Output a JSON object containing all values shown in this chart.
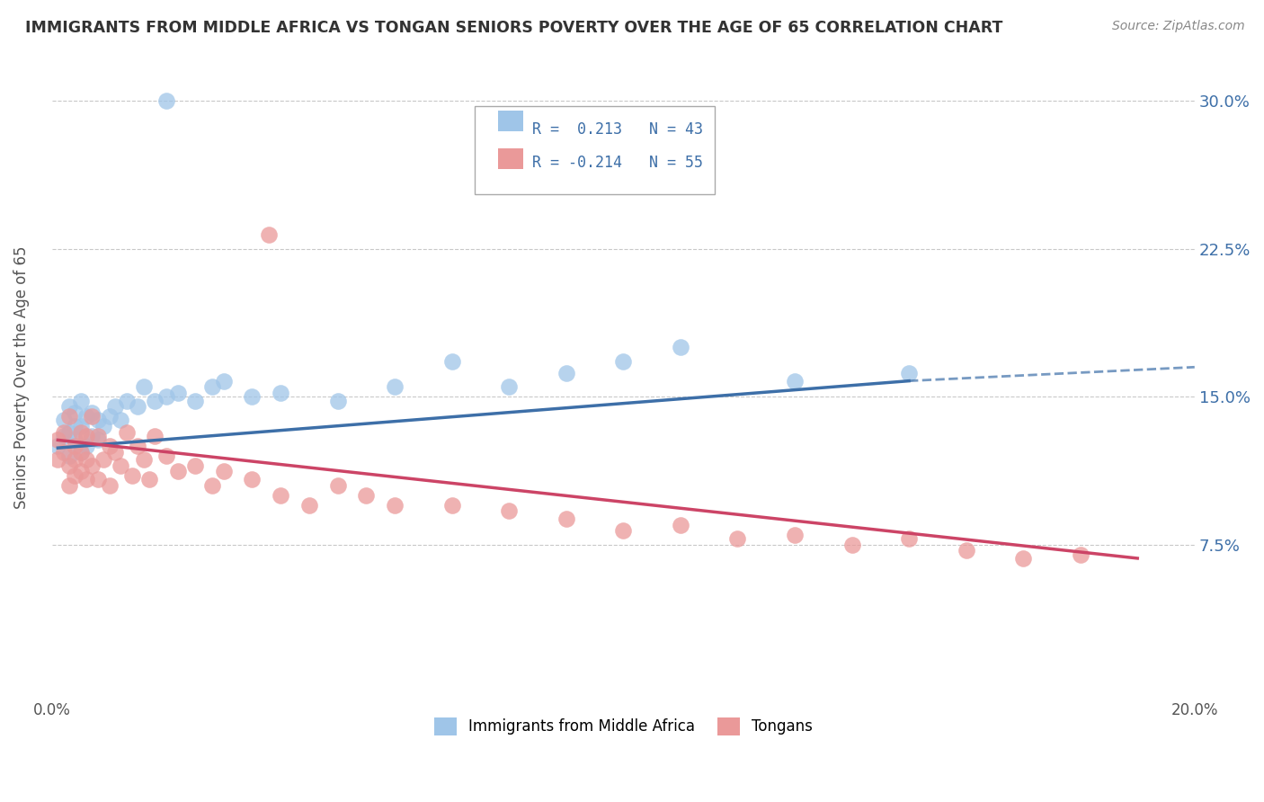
{
  "title": "IMMIGRANTS FROM MIDDLE AFRICA VS TONGAN SENIORS POVERTY OVER THE AGE OF 65 CORRELATION CHART",
  "source": "Source: ZipAtlas.com",
  "ylabel": "Seniors Poverty Over the Age of 65",
  "legend_label_blue": "Immigrants from Middle Africa",
  "legend_label_pink": "Tongans",
  "R_blue": 0.213,
  "N_blue": 43,
  "R_pink": -0.214,
  "N_pink": 55,
  "xlim": [
    0.0,
    0.2
  ],
  "ylim": [
    0.0,
    0.32
  ],
  "xtick_positions": [
    0.0,
    0.05,
    0.1,
    0.15,
    0.2
  ],
  "xtick_labels": [
    "0.0%",
    "",
    "",
    "",
    "20.0%"
  ],
  "ytick_positions": [
    0.075,
    0.15,
    0.225,
    0.3
  ],
  "ytick_labels": [
    "7.5%",
    "15.0%",
    "22.5%",
    "30.0%"
  ],
  "color_blue": "#9fc5e8",
  "color_pink": "#ea9999",
  "line_color_blue": "#3d6fa8",
  "line_color_pink": "#cc4466",
  "background_color": "#ffffff",
  "grid_color": "#bbbbbb",
  "blue_x": [
    0.001,
    0.002,
    0.002,
    0.003,
    0.003,
    0.003,
    0.004,
    0.004,
    0.004,
    0.005,
    0.005,
    0.005,
    0.006,
    0.006,
    0.007,
    0.007,
    0.008,
    0.008,
    0.009,
    0.01,
    0.011,
    0.012,
    0.013,
    0.015,
    0.016,
    0.018,
    0.02,
    0.022,
    0.025,
    0.028,
    0.03,
    0.035,
    0.04,
    0.05,
    0.06,
    0.07,
    0.08,
    0.09,
    0.1,
    0.11,
    0.13,
    0.15,
    0.02
  ],
  "blue_y": [
    0.125,
    0.13,
    0.138,
    0.12,
    0.132,
    0.145,
    0.128,
    0.135,
    0.142,
    0.122,
    0.135,
    0.148,
    0.125,
    0.14,
    0.13,
    0.142,
    0.128,
    0.138,
    0.135,
    0.14,
    0.145,
    0.138,
    0.148,
    0.145,
    0.155,
    0.148,
    0.15,
    0.152,
    0.148,
    0.155,
    0.158,
    0.15,
    0.152,
    0.148,
    0.155,
    0.168,
    0.155,
    0.162,
    0.168,
    0.175,
    0.158,
    0.162,
    0.3
  ],
  "pink_x": [
    0.001,
    0.001,
    0.002,
    0.002,
    0.003,
    0.003,
    0.003,
    0.004,
    0.004,
    0.004,
    0.005,
    0.005,
    0.005,
    0.006,
    0.006,
    0.006,
    0.007,
    0.007,
    0.008,
    0.008,
    0.009,
    0.01,
    0.01,
    0.011,
    0.012,
    0.013,
    0.014,
    0.015,
    0.016,
    0.017,
    0.018,
    0.02,
    0.022,
    0.025,
    0.028,
    0.03,
    0.035,
    0.04,
    0.045,
    0.05,
    0.06,
    0.07,
    0.08,
    0.09,
    0.1,
    0.11,
    0.12,
    0.13,
    0.14,
    0.15,
    0.16,
    0.17,
    0.18,
    0.038,
    0.055
  ],
  "pink_y": [
    0.128,
    0.118,
    0.132,
    0.122,
    0.14,
    0.115,
    0.105,
    0.125,
    0.11,
    0.118,
    0.132,
    0.112,
    0.122,
    0.13,
    0.108,
    0.118,
    0.14,
    0.115,
    0.13,
    0.108,
    0.118,
    0.125,
    0.105,
    0.122,
    0.115,
    0.132,
    0.11,
    0.125,
    0.118,
    0.108,
    0.13,
    0.12,
    0.112,
    0.115,
    0.105,
    0.112,
    0.108,
    0.1,
    0.095,
    0.105,
    0.095,
    0.095,
    0.092,
    0.088,
    0.082,
    0.085,
    0.078,
    0.08,
    0.075,
    0.078,
    0.072,
    0.068,
    0.07,
    0.232,
    0.1
  ],
  "blue_line_x_start": 0.001,
  "blue_line_x_end_solid": 0.15,
  "blue_line_x_end_dash": 0.2,
  "blue_line_y_at_start": 0.124,
  "blue_line_y_at_end_solid": 0.158,
  "blue_line_y_at_end_dash": 0.165,
  "pink_line_x_start": 0.001,
  "pink_line_x_end": 0.19,
  "pink_line_y_at_start": 0.128,
  "pink_line_y_at_end": 0.068
}
